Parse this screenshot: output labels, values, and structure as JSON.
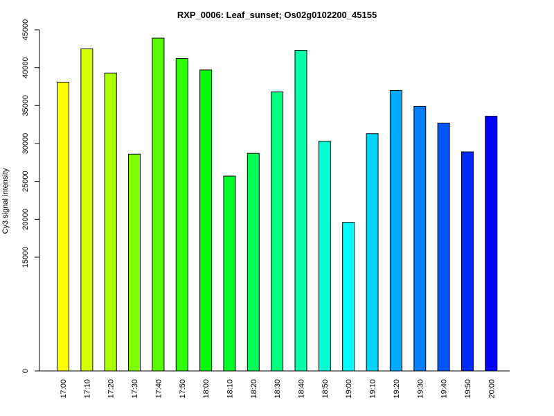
{
  "chart_data": {
    "type": "bar",
    "title": "RXP_0006: Leaf_sunset; Os02g0102200_45155",
    "xlabel": "",
    "ylabel": "Cy3 signal intensity",
    "ylim": [
      0,
      45000
    ],
    "yticks": [
      0,
      15000,
      20000,
      25000,
      30000,
      35000,
      40000,
      45000
    ],
    "ytick_labels": [
      "0",
      "15000",
      "20000",
      "25000",
      "30000",
      "35000",
      "40000",
      "45000"
    ],
    "categories": [
      "17:00",
      "17:10",
      "17:20",
      "17:30",
      "17:40",
      "17:50",
      "18:00",
      "18:10",
      "18:20",
      "18:30",
      "18:40",
      "18:50",
      "19:00",
      "19:10",
      "19:20",
      "19:30",
      "19:40",
      "19:50",
      "20:00"
    ],
    "values": [
      38100,
      42500,
      39300,
      28600,
      43900,
      41200,
      39700,
      25700,
      28700,
      36800,
      42300,
      30300,
      19600,
      31300,
      37000,
      34900,
      32700,
      28900,
      33600
    ],
    "bar_colors": [
      "#FFFF00",
      "#D4FF00",
      "#AAFF00",
      "#80FF00",
      "#55FF00",
      "#2BFF00",
      "#00FF00",
      "#00FF2A",
      "#00FF55",
      "#00FF80",
      "#00FFAA",
      "#00FFD4",
      "#00FFFF",
      "#00D4FF",
      "#00AAFF",
      "#0080FF",
      "#0055FF",
      "#002AFF",
      "#0000FF"
    ],
    "grid": false,
    "legend": "none"
  }
}
